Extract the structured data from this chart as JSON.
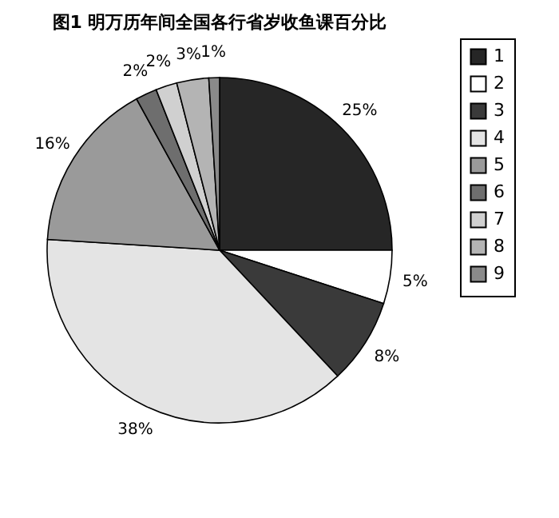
{
  "chart_data": {
    "type": "pie",
    "title": "图1  明万历年间全国各行省岁收鱼课百分比",
    "categories": [
      "1",
      "2",
      "3",
      "4",
      "5",
      "6",
      "7",
      "8",
      "9"
    ],
    "values": [
      25,
      5,
      8,
      38,
      16,
      2,
      2,
      3,
      1
    ],
    "value_labels": [
      "25%",
      "5%",
      "8%",
      "38%",
      "16%",
      "2%",
      "2%",
      "3%",
      "1%"
    ],
    "colors": [
      "#262626",
      "#ffffff",
      "#3a3a3a",
      "#e4e4e4",
      "#9a9a9a",
      "#6e6e6e",
      "#d0d0d0",
      "#b4b4b4",
      "#8a8a8a"
    ],
    "legend": "right"
  }
}
